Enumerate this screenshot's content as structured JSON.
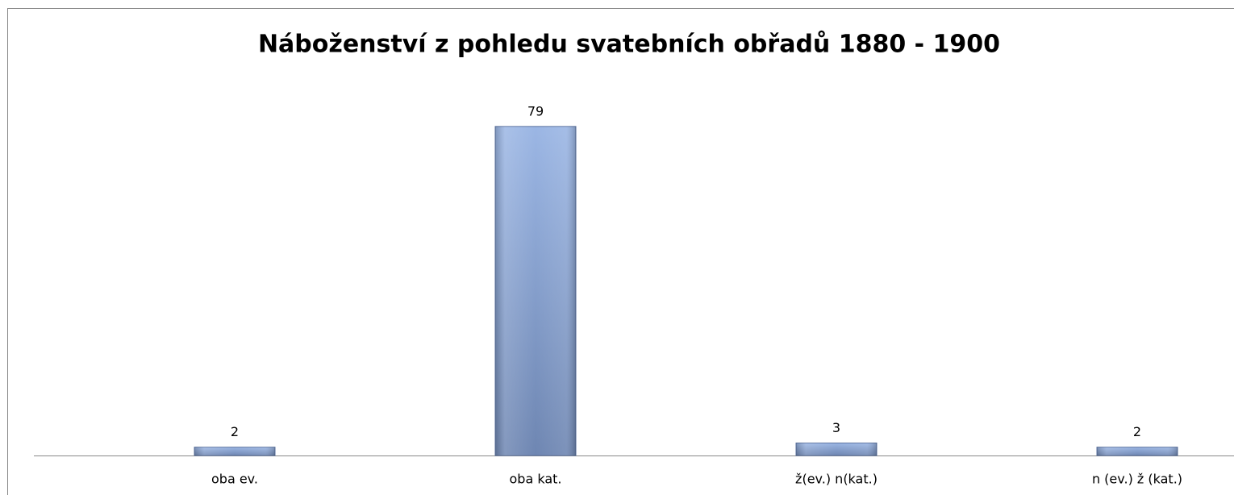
{
  "chart_data": {
    "type": "bar",
    "title": "Náboženství z pohledu svatebních obřadů 1880 - 1900",
    "categories": [
      "oba ev.",
      "oba kat.",
      "ž(ev.) n(kat.)",
      "n (ev.) ž (kat.)"
    ],
    "values": [
      2,
      79,
      3,
      2
    ],
    "color": "#8aa6d6",
    "ylim": [
      0,
      90
    ]
  }
}
